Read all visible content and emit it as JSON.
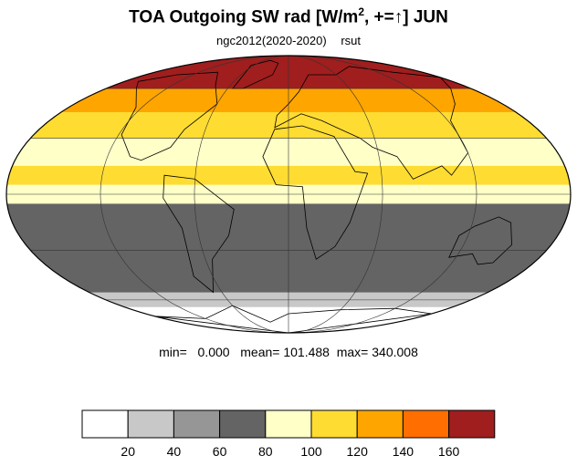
{
  "title": {
    "main": "TOA Outgoing SW rad [W/m",
    "sup": "2",
    "rest": ", +=↑] JUN"
  },
  "subtitle": {
    "run": "ngc2012(2020-2020)",
    "variable": "rsut"
  },
  "stats": {
    "min_label": "min=",
    "min": "0.000",
    "mean_label": "mean=",
    "mean": "101.488",
    "max_label": "max=",
    "max": "340.008"
  },
  "map": {
    "projection": "mollweide",
    "graticule_lon_step_deg": 60,
    "graticule_lat_step_deg": 30,
    "latitude_bands": [
      {
        "lat_from": 90,
        "lat_to": 60,
        "value_class": 8
      },
      {
        "lat_from": 60,
        "lat_to": 45,
        "value_class": 6
      },
      {
        "lat_from": 45,
        "lat_to": 30,
        "value_class": 5
      },
      {
        "lat_from": 30,
        "lat_to": 15,
        "value_class": 4
      },
      {
        "lat_from": 15,
        "lat_to": 5,
        "value_class": 5
      },
      {
        "lat_from": 5,
        "lat_to": -5,
        "value_class": 4
      },
      {
        "lat_from": -5,
        "lat_to": -35,
        "value_class": 3
      },
      {
        "lat_from": -35,
        "lat_to": -55,
        "value_class": 3
      },
      {
        "lat_from": -55,
        "lat_to": -65,
        "value_class": 1
      },
      {
        "lat_from": -65,
        "lat_to": -90,
        "value_class": 0
      }
    ]
  },
  "colorbar": {
    "colors": [
      "#ffffff",
      "#c8c8c8",
      "#969696",
      "#646464",
      "#ffffc8",
      "#ffdc32",
      "#ffa500",
      "#ff6e00",
      "#a01e1e"
    ],
    "ticks": [
      "20",
      "40",
      "60",
      "80",
      "100",
      "120",
      "140",
      "160"
    ]
  }
}
